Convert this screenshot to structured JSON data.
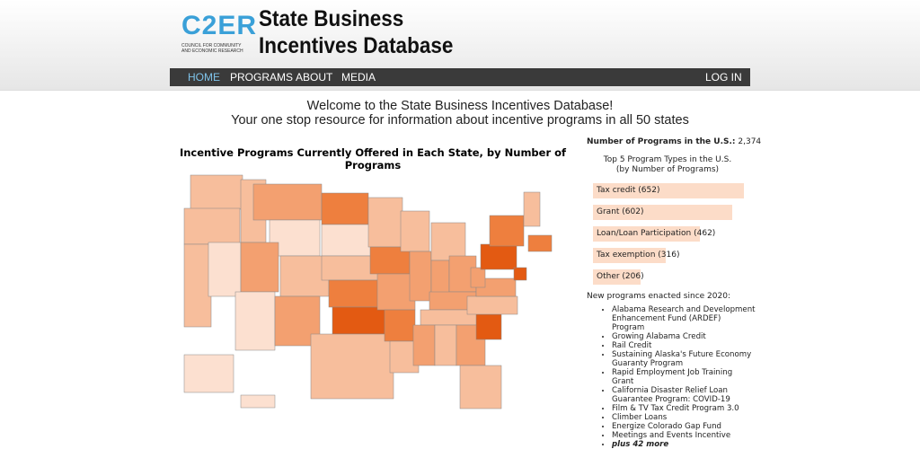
{
  "header": {
    "logo": {
      "mark": "C2ER",
      "subtitle": "COUNCIL FOR COMMUNITY AND ECONOMIC RESEARCH"
    },
    "title_line1": "State Business",
    "title_line2": "Incentives Database"
  },
  "nav": {
    "left": [
      "HOME",
      "PROGRAMS",
      "ABOUT",
      "MEDIA"
    ],
    "right": "LOG IN"
  },
  "welcome": {
    "line1": "Welcome to the State Business Incentives Database!",
    "line2": "Your one stop resource for information about incentive programs in all 50 states"
  },
  "map": {
    "title": "Incentive Programs Currently Offered in Each State, by Number of Programs"
  },
  "sidebar": {
    "total_label": "Number of Programs in the U.S.:",
    "total_value": "2,374",
    "top5_title_line1": "Top 5 Program Types in the U.S.",
    "top5_title_line2": "(by Number of Programs)",
    "program_types": [
      {
        "label": "Tax credit (652)",
        "value": 652
      },
      {
        "label": "Grant (602)",
        "value": 602
      },
      {
        "label": "Loan/Loan Participation (462)",
        "value": 462
      },
      {
        "label": "Tax exemption (316)",
        "value": 316
      },
      {
        "label": "Other (206)",
        "value": 206
      }
    ],
    "new_title": "New programs enacted since 2020:",
    "new_programs": [
      "Alabama Research and Development Enhancement Fund (ARDEF) Program",
      "Growing Alabama Credit",
      "Rail Credit",
      "Sustaining Alaska's Future Economy Guaranty Program",
      "Rapid Employment Job Training Grant",
      "California Disaster Relief Loan Guarantee Program: COVID-19",
      "Film & TV Tax Credit Program 3.0",
      "Climber Loans",
      "Energize Colorado Gap Fund",
      "Meetings and Events Incentive"
    ],
    "more": "plus 42 more"
  }
}
